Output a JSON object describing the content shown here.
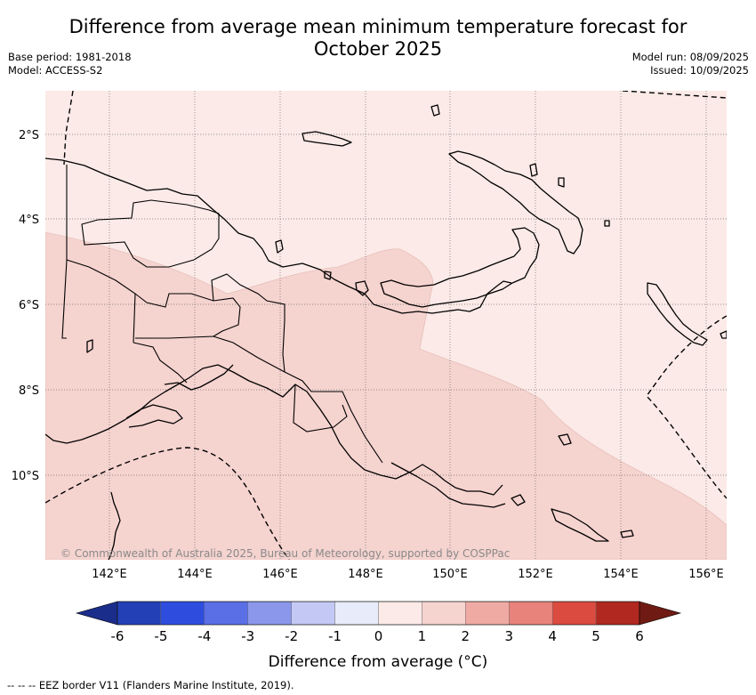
{
  "title": {
    "line1": "Difference from average mean minimum temperature forecast for",
    "line2": "October 2025"
  },
  "meta": {
    "base_period": "Base period: 1981-2018",
    "model": "Model: ACCESS-S2",
    "model_run": "Model run: 08/09/2025",
    "issued": "Issued: 10/09/2025"
  },
  "map": {
    "region": "Papua New Guinea",
    "lat_labels": [
      "2°S",
      "4°S",
      "6°S",
      "8°S",
      "10°S"
    ],
    "lon_labels": [
      "142°E",
      "144°E",
      "146°E",
      "148°E",
      "150°E",
      "152°E",
      "154°E",
      "156°E"
    ],
    "copyright": "© Commonwealth of Australia 2025, Bureau of Meteorology, supported by COSPPac",
    "anomaly_fills": {
      "0_to_1": "#fbeae7",
      "1_to_2": "#f5d3cf"
    }
  },
  "colorbar": {
    "title": "Difference from average (°C)",
    "tick_labels": [
      "-6",
      "-5",
      "-4",
      "-3",
      "-2",
      "-1",
      "0",
      "1",
      "2",
      "3",
      "4",
      "5",
      "6"
    ],
    "colors": [
      "#1b2d8a",
      "#2340b7",
      "#2e4ddf",
      "#5a6fe6",
      "#8a97ea",
      "#c3c8f4",
      "#e8ebfa",
      "#fbeae7",
      "#f5d3cf",
      "#efaaa4",
      "#e8837c",
      "#db4b3f",
      "#b0281f",
      "#6f1b13"
    ]
  },
  "legend_note": "-- -- -- EEZ border V11 (Flanders Marine Institute, 2019)."
}
